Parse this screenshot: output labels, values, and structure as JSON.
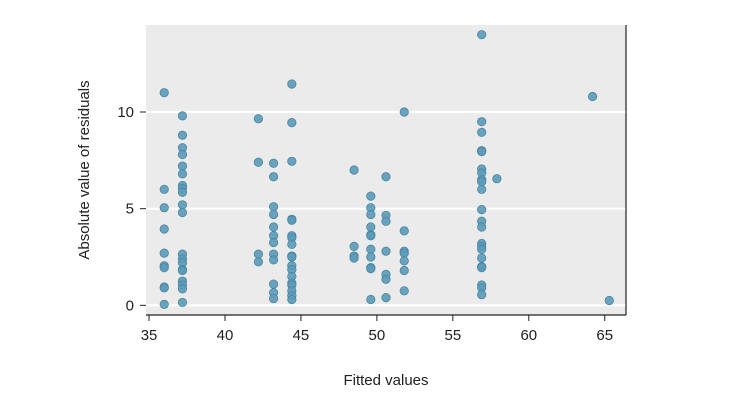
{
  "chart_data": {
    "type": "scatter",
    "title": "",
    "xlabel": "Fitted values",
    "ylabel": "Absolute value of residuals",
    "xlim": [
      34.8,
      66.4
    ],
    "ylim": [
      -0.5,
      14.5
    ],
    "xticks": [
      35,
      40,
      45,
      50,
      55,
      60,
      65
    ],
    "yticks": [
      0,
      5,
      10
    ],
    "grid": true,
    "point_color": "#5b9ab8",
    "panel_color": "#ebebeb",
    "series": [
      {
        "points": [
          [
            36.0,
            11.0
          ],
          [
            36.0,
            6.0
          ],
          [
            36.0,
            5.05
          ],
          [
            36.0,
            3.95
          ],
          [
            36.0,
            2.7
          ],
          [
            36.0,
            2.05
          ],
          [
            36.0,
            1.95
          ],
          [
            36.0,
            0.95
          ],
          [
            36.0,
            0.9
          ],
          [
            36.0,
            0.05
          ],
          [
            37.2,
            9.8
          ],
          [
            37.2,
            8.8
          ],
          [
            37.2,
            8.15
          ],
          [
            37.2,
            7.8
          ],
          [
            37.2,
            7.2
          ],
          [
            37.2,
            6.8
          ],
          [
            37.2,
            6.2
          ],
          [
            37.2,
            6.05
          ],
          [
            37.2,
            5.85
          ],
          [
            37.2,
            5.2
          ],
          [
            37.2,
            4.8
          ],
          [
            37.2,
            2.65
          ],
          [
            37.2,
            2.4
          ],
          [
            37.2,
            2.2
          ],
          [
            37.2,
            1.85
          ],
          [
            37.2,
            1.8
          ],
          [
            37.2,
            1.25
          ],
          [
            37.2,
            1.05
          ],
          [
            37.2,
            0.85
          ],
          [
            37.2,
            0.15
          ],
          [
            42.2,
            9.65
          ],
          [
            42.2,
            7.4
          ],
          [
            42.2,
            2.65
          ],
          [
            42.2,
            2.25
          ],
          [
            43.2,
            7.35
          ],
          [
            43.2,
            6.65
          ],
          [
            43.2,
            5.1
          ],
          [
            43.2,
            4.7
          ],
          [
            43.2,
            4.05
          ],
          [
            43.2,
            3.6
          ],
          [
            43.2,
            3.25
          ],
          [
            43.2,
            2.65
          ],
          [
            43.2,
            2.35
          ],
          [
            43.2,
            1.1
          ],
          [
            43.2,
            0.65
          ],
          [
            43.2,
            0.35
          ],
          [
            44.4,
            11.45
          ],
          [
            44.4,
            9.45
          ],
          [
            44.4,
            7.45
          ],
          [
            44.4,
            4.45
          ],
          [
            44.4,
            4.4
          ],
          [
            44.4,
            3.6
          ],
          [
            44.4,
            3.5
          ],
          [
            44.4,
            3.15
          ],
          [
            44.4,
            2.55
          ],
          [
            44.4,
            2.5
          ],
          [
            44.4,
            2.05
          ],
          [
            44.4,
            1.85
          ],
          [
            44.4,
            1.5
          ],
          [
            44.4,
            1.15
          ],
          [
            44.4,
            1.05
          ],
          [
            44.4,
            0.75
          ],
          [
            44.4,
            0.5
          ],
          [
            44.4,
            0.3
          ],
          [
            48.5,
            7.0
          ],
          [
            48.5,
            3.05
          ],
          [
            48.5,
            2.55
          ],
          [
            48.5,
            2.45
          ],
          [
            49.6,
            5.65
          ],
          [
            49.6,
            5.05
          ],
          [
            49.6,
            4.7
          ],
          [
            49.6,
            4.05
          ],
          [
            49.6,
            3.65
          ],
          [
            49.6,
            3.6
          ],
          [
            49.6,
            2.9
          ],
          [
            49.6,
            2.5
          ],
          [
            49.6,
            1.95
          ],
          [
            49.6,
            1.9
          ],
          [
            49.6,
            0.3
          ],
          [
            50.6,
            6.65
          ],
          [
            50.6,
            4.65
          ],
          [
            50.6,
            4.35
          ],
          [
            50.6,
            2.8
          ],
          [
            50.6,
            1.6
          ],
          [
            50.6,
            1.35
          ],
          [
            50.6,
            0.4
          ],
          [
            51.8,
            10.0
          ],
          [
            51.8,
            3.85
          ],
          [
            51.8,
            2.8
          ],
          [
            51.8,
            2.7
          ],
          [
            51.8,
            2.3
          ],
          [
            51.8,
            1.8
          ],
          [
            51.8,
            0.75
          ],
          [
            56.9,
            14.0
          ],
          [
            56.9,
            9.5
          ],
          [
            56.9,
            8.95
          ],
          [
            56.9,
            8.0
          ],
          [
            56.9,
            7.95
          ],
          [
            56.9,
            7.05
          ],
          [
            56.9,
            6.85
          ],
          [
            56.9,
            6.5
          ],
          [
            56.9,
            6.4
          ],
          [
            56.9,
            6.0
          ],
          [
            56.9,
            4.95
          ],
          [
            56.9,
            4.35
          ],
          [
            56.9,
            4.05
          ],
          [
            56.9,
            3.2
          ],
          [
            56.9,
            3.05
          ],
          [
            56.9,
            2.9
          ],
          [
            56.9,
            2.45
          ],
          [
            56.9,
            2.0
          ],
          [
            56.9,
            1.95
          ],
          [
            56.9,
            1.05
          ],
          [
            56.9,
            0.9
          ],
          [
            56.9,
            0.55
          ],
          [
            57.9,
            6.55
          ],
          [
            64.2,
            10.8
          ],
          [
            65.3,
            0.25
          ]
        ]
      }
    ]
  }
}
